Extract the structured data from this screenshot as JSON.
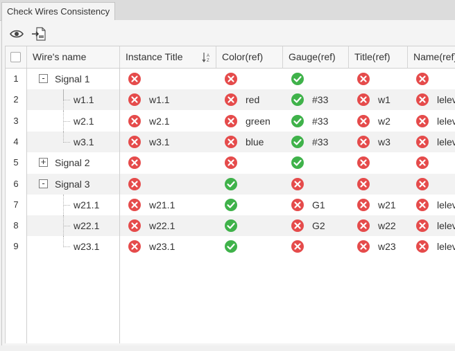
{
  "tab": {
    "title": "Check Wires Consistency"
  },
  "toolbar": {
    "view_icon": "eye-icon",
    "export_icon": "export-icon"
  },
  "columns": [
    "Wire's name",
    "Instance Title",
    "Color(ref)",
    "Gauge(ref)",
    "Title(ref)",
    "Name(ref)"
  ],
  "rows": [
    {
      "n": "1",
      "name": "Signal 1",
      "level": 0,
      "expander": "-",
      "inst": {
        "s": "err",
        "t": ""
      },
      "color": {
        "s": "err",
        "t": ""
      },
      "gauge": {
        "s": "ok",
        "t": ""
      },
      "title": {
        "s": "err",
        "t": ""
      },
      "nm": {
        "s": "err",
        "t": ""
      }
    },
    {
      "n": "2",
      "name": "w1.1",
      "level": 1,
      "expander": "",
      "inst": {
        "s": "err",
        "t": "w1.1"
      },
      "color": {
        "s": "err",
        "t": "red"
      },
      "gauge": {
        "s": "ok",
        "t": "#33"
      },
      "title": {
        "s": "err",
        "t": "w1"
      },
      "nm": {
        "s": "err",
        "t": "lelev"
      }
    },
    {
      "n": "3",
      "name": "w2.1",
      "level": 1,
      "expander": "",
      "inst": {
        "s": "err",
        "t": "w2.1"
      },
      "color": {
        "s": "err",
        "t": "green"
      },
      "gauge": {
        "s": "ok",
        "t": "#33"
      },
      "title": {
        "s": "err",
        "t": "w2"
      },
      "nm": {
        "s": "err",
        "t": "lelev"
      }
    },
    {
      "n": "4",
      "name": "w3.1",
      "level": 1,
      "expander": "",
      "inst": {
        "s": "err",
        "t": "w3.1"
      },
      "color": {
        "s": "err",
        "t": "blue"
      },
      "gauge": {
        "s": "ok",
        "t": "#33"
      },
      "title": {
        "s": "err",
        "t": "w3"
      },
      "nm": {
        "s": "err",
        "t": "lelev"
      }
    },
    {
      "n": "5",
      "name": "Signal 2",
      "level": 0,
      "expander": "+",
      "inst": {
        "s": "err",
        "t": ""
      },
      "color": {
        "s": "err",
        "t": ""
      },
      "gauge": {
        "s": "ok",
        "t": ""
      },
      "title": {
        "s": "err",
        "t": ""
      },
      "nm": {
        "s": "err",
        "t": ""
      }
    },
    {
      "n": "6",
      "name": "Signal 3",
      "level": 0,
      "expander": "-",
      "inst": {
        "s": "err",
        "t": ""
      },
      "color": {
        "s": "ok",
        "t": ""
      },
      "gauge": {
        "s": "err",
        "t": ""
      },
      "title": {
        "s": "err",
        "t": ""
      },
      "nm": {
        "s": "err",
        "t": ""
      }
    },
    {
      "n": "7",
      "name": "w21.1",
      "level": 1,
      "expander": "",
      "inst": {
        "s": "err",
        "t": "w21.1"
      },
      "color": {
        "s": "ok",
        "t": ""
      },
      "gauge": {
        "s": "err",
        "t": "G1"
      },
      "title": {
        "s": "err",
        "t": "w21"
      },
      "nm": {
        "s": "err",
        "t": "lelev"
      }
    },
    {
      "n": "8",
      "name": "w22.1",
      "level": 1,
      "expander": "",
      "inst": {
        "s": "err",
        "t": "w22.1"
      },
      "color": {
        "s": "ok",
        "t": ""
      },
      "gauge": {
        "s": "err",
        "t": "G2"
      },
      "title": {
        "s": "err",
        "t": "w22"
      },
      "nm": {
        "s": "err",
        "t": "lelev"
      }
    },
    {
      "n": "9",
      "name": "w23.1",
      "level": 1,
      "expander": "",
      "inst": {
        "s": "err",
        "t": "w23.1"
      },
      "color": {
        "s": "ok",
        "t": ""
      },
      "gauge": {
        "s": "err",
        "t": ""
      },
      "title": {
        "s": "err",
        "t": "w23"
      },
      "nm": {
        "s": "err",
        "t": "lelev"
      }
    }
  ],
  "colors": {
    "error": "#e54b4b",
    "ok": "#3fb24a"
  }
}
